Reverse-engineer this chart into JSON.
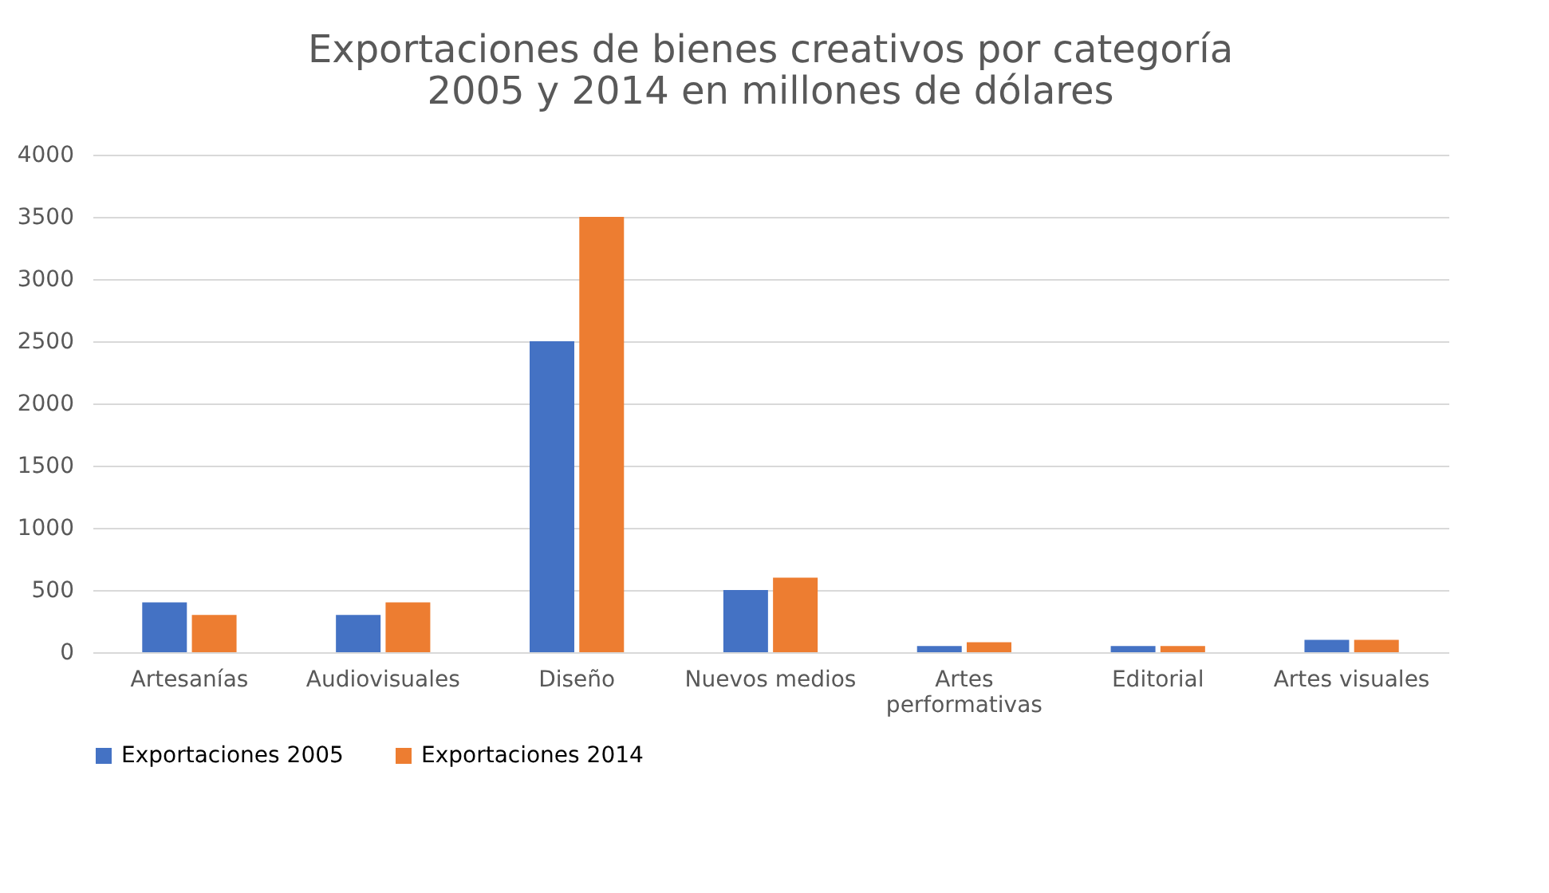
{
  "chart_data": {
    "type": "bar",
    "title": "Exportaciones de bienes creativos por categoría\n2005 y 2014 en millones de dólares",
    "categories": [
      "Artesanías",
      "Audiovisuales",
      "Diseño",
      "Nuevos medios",
      "Artes performativas",
      "Editorial",
      "Artes visuales"
    ],
    "series": [
      {
        "name": "Exportaciones 2005",
        "color": "#4472c4",
        "values": [
          400,
          300,
          2500,
          500,
          50,
          50,
          100
        ]
      },
      {
        "name": "Exportaciones 2014",
        "color": "#ed7d31",
        "values": [
          300,
          400,
          3500,
          600,
          80,
          50,
          100
        ]
      }
    ],
    "ylim": [
      0,
      4000
    ],
    "yticks": [
      0,
      500,
      1000,
      1500,
      2000,
      2500,
      3000,
      3500,
      4000
    ],
    "grid": "y",
    "legend": "bottom"
  }
}
